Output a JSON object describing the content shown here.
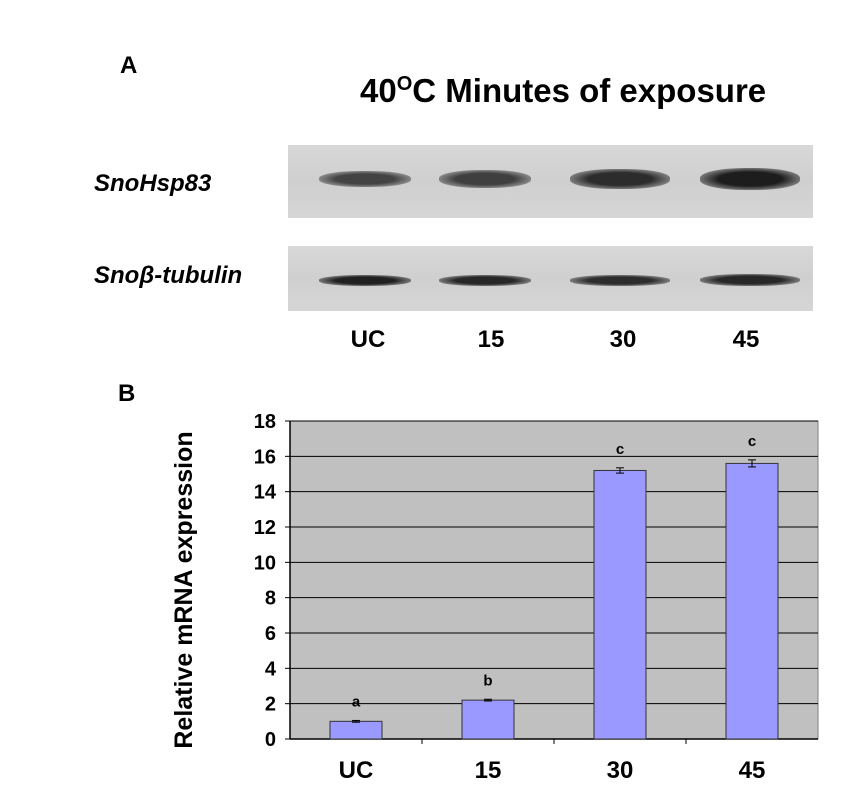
{
  "panel_a": {
    "label": "A",
    "title_prefix": "40",
    "title_superscript": "O",
    "title_suffix": "C Minutes of exposure",
    "rows": [
      {
        "label": "SnoHsp83",
        "band_intensity": [
          0.7,
          0.72,
          0.82,
          0.9
        ]
      },
      {
        "label": "Snoβ-tubulin",
        "band_intensity": [
          0.88,
          0.85,
          0.82,
          0.84
        ]
      }
    ],
    "lanes": [
      "UC",
      "15",
      "30",
      "45"
    ]
  },
  "panel_b": {
    "label": "B"
  },
  "chart_data": {
    "type": "bar",
    "categories": [
      "UC",
      "15",
      "30",
      "45"
    ],
    "values": [
      1.0,
      2.2,
      15.2,
      15.6
    ],
    "errors": [
      0.05,
      0.05,
      0.15,
      0.2
    ],
    "significance": [
      "a",
      "b",
      "c",
      "c"
    ],
    "title": "",
    "xlabel": "",
    "ylabel": "Relative mRNA expression",
    "ylim": [
      0,
      18
    ],
    "yticks": [
      "0",
      "2",
      "4",
      "6",
      "8",
      "10",
      "12",
      "14",
      "16",
      "18"
    ],
    "grid": true,
    "bar_color": "#9999ff",
    "plot_background": "#c0c0c0"
  }
}
